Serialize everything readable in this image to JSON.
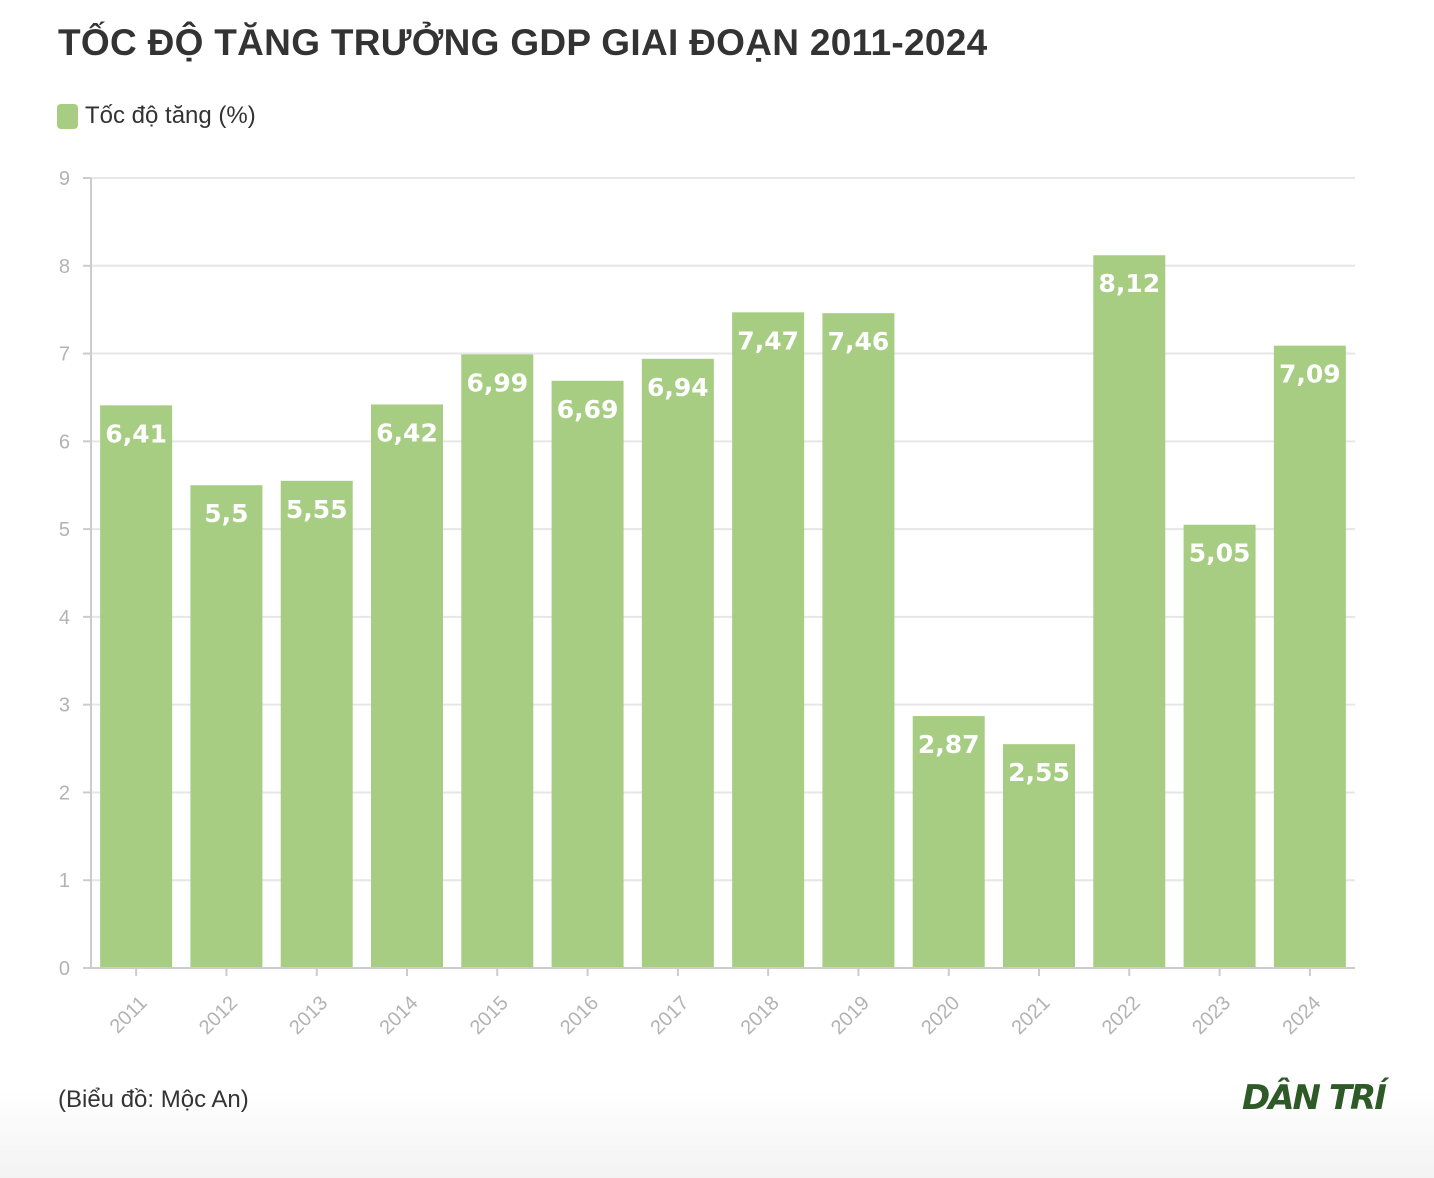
{
  "title": "TỐC ĐỘ TĂNG TRƯỞNG GDP GIAI ĐOẠN 2011-2024",
  "source": "(Biểu đồ: Mộc An)",
  "logo_text": "DÂN TRÍ",
  "colors": {
    "bar": "#a6cd82",
    "grid": "#e6e6e6",
    "axis": "#cccccc",
    "tick_text": "#b3b3b3",
    "label_text": "#ffffff",
    "title_text": "#333333"
  },
  "chart_data": {
    "type": "bar",
    "title": "TỐC ĐỘ TĂNG TRƯỞNG GDP GIAI ĐOẠN 2011-2024",
    "categories": [
      "2011",
      "2012",
      "2013",
      "2014",
      "2015",
      "2016",
      "2017",
      "2018",
      "2019",
      "2020",
      "2021",
      "2022",
      "2023",
      "2024"
    ],
    "series": [
      {
        "name": "Tốc độ tăng (%)",
        "values": [
          6.41,
          5.5,
          5.55,
          6.42,
          6.99,
          6.69,
          6.94,
          7.47,
          7.46,
          2.87,
          2.55,
          8.12,
          5.05,
          7.09
        ],
        "labels": [
          "6,41",
          "5,5",
          "5,55",
          "6,42",
          "6,99",
          "6,69",
          "6,94",
          "7,47",
          "7,46",
          "2,87",
          "2,55",
          "8,12",
          "5,05",
          "7,09"
        ]
      }
    ],
    "yticks": [
      0,
      1,
      2,
      3,
      4,
      5,
      6,
      7,
      8,
      9
    ],
    "ylim": [
      0,
      9
    ],
    "xlabel": "",
    "ylabel": "",
    "grid": true,
    "legend_position": "top-left"
  }
}
